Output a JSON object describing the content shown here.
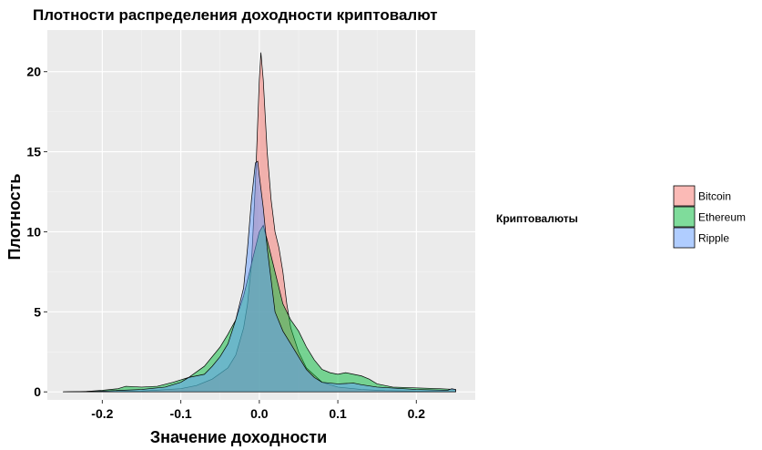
{
  "chart_data": {
    "type": "area",
    "title": "Плотности распределения доходности криптовалют",
    "xlabel": "Значение доходности",
    "ylabel": "Плотность",
    "xlim": [
      -0.27,
      0.275
    ],
    "ylim": [
      -0.5,
      22.6
    ],
    "x_ticks": [
      -0.2,
      -0.1,
      0.0,
      0.1,
      0.2
    ],
    "x_tick_labels": [
      "-0.2",
      "-0.1",
      "0.0",
      "0.1",
      "0.2"
    ],
    "y_ticks": [
      0,
      5,
      10,
      15,
      20
    ],
    "y_tick_labels": [
      "0",
      "5",
      "10",
      "15",
      "20"
    ],
    "grid": true,
    "legend": {
      "title": "Криптовалюты",
      "position": "right"
    },
    "series": [
      {
        "name": "Bitcoin",
        "color": "#F8766D",
        "points": [
          [
            -0.25,
            0
          ],
          [
            -0.2,
            0.02
          ],
          [
            -0.15,
            0.05
          ],
          [
            -0.1,
            0.2
          ],
          [
            -0.08,
            0.4
          ],
          [
            -0.06,
            0.8
          ],
          [
            -0.04,
            1.5
          ],
          [
            -0.03,
            2.3
          ],
          [
            -0.02,
            4
          ],
          [
            -0.015,
            5.5
          ],
          [
            -0.01,
            8
          ],
          [
            -0.005,
            13
          ],
          [
            0,
            19.5
          ],
          [
            0.002,
            21.2
          ],
          [
            0.005,
            19.5
          ],
          [
            0.01,
            15
          ],
          [
            0.015,
            12
          ],
          [
            0.02,
            10
          ],
          [
            0.025,
            9
          ],
          [
            0.03,
            7.5
          ],
          [
            0.035,
            5.5
          ],
          [
            0.04,
            4
          ],
          [
            0.05,
            2.5
          ],
          [
            0.06,
            1.5
          ],
          [
            0.08,
            0.6
          ],
          [
            0.1,
            0.3
          ],
          [
            0.13,
            0.15
          ],
          [
            0.16,
            0.08
          ],
          [
            0.2,
            0.04
          ],
          [
            0.25,
            0.02
          ]
        ]
      },
      {
        "name": "Ethereum",
        "color": "#00BA38",
        "points": [
          [
            -0.25,
            0
          ],
          [
            -0.22,
            0.03
          ],
          [
            -0.2,
            0.1
          ],
          [
            -0.18,
            0.2
          ],
          [
            -0.17,
            0.35
          ],
          [
            -0.15,
            0.3
          ],
          [
            -0.13,
            0.35
          ],
          [
            -0.11,
            0.6
          ],
          [
            -0.09,
            0.9
          ],
          [
            -0.07,
            1.6
          ],
          [
            -0.05,
            2.8
          ],
          [
            -0.04,
            3.6
          ],
          [
            -0.03,
            4.5
          ],
          [
            -0.02,
            6
          ],
          [
            -0.01,
            8
          ],
          [
            0,
            10
          ],
          [
            0.005,
            10.4
          ],
          [
            0.01,
            9.5
          ],
          [
            0.02,
            7.5
          ],
          [
            0.03,
            5.5
          ],
          [
            0.04,
            4.5
          ],
          [
            0.05,
            3.8
          ],
          [
            0.06,
            2.8
          ],
          [
            0.07,
            2
          ],
          [
            0.08,
            1.4
          ],
          [
            0.09,
            1.2
          ],
          [
            0.1,
            1.1
          ],
          [
            0.11,
            1.2
          ],
          [
            0.12,
            1.1
          ],
          [
            0.13,
            1
          ],
          [
            0.14,
            0.8
          ],
          [
            0.15,
            0.5
          ],
          [
            0.17,
            0.3
          ],
          [
            0.2,
            0.25
          ],
          [
            0.23,
            0.2
          ],
          [
            0.25,
            0.15
          ]
        ]
      },
      {
        "name": "Ripple",
        "color": "#619CFF",
        "points": [
          [
            -0.25,
            0
          ],
          [
            -0.2,
            0.05
          ],
          [
            -0.15,
            0.15
          ],
          [
            -0.12,
            0.3
          ],
          [
            -0.1,
            0.6
          ],
          [
            -0.09,
            0.9
          ],
          [
            -0.08,
            1
          ],
          [
            -0.07,
            1.1
          ],
          [
            -0.06,
            1.6
          ],
          [
            -0.05,
            2.2
          ],
          [
            -0.04,
            3
          ],
          [
            -0.03,
            4.5
          ],
          [
            -0.02,
            6.5
          ],
          [
            -0.015,
            9
          ],
          [
            -0.01,
            12
          ],
          [
            -0.005,
            14.3
          ],
          [
            -0.002,
            14.4
          ],
          [
            0,
            13.5
          ],
          [
            0.005,
            11.5
          ],
          [
            0.01,
            9
          ],
          [
            0.015,
            7
          ],
          [
            0.02,
            5
          ],
          [
            0.03,
            3.8
          ],
          [
            0.04,
            3
          ],
          [
            0.05,
            2.2
          ],
          [
            0.06,
            1.4
          ],
          [
            0.07,
            0.9
          ],
          [
            0.08,
            0.6
          ],
          [
            0.1,
            0.5
          ],
          [
            0.12,
            0.55
          ],
          [
            0.13,
            0.45
          ],
          [
            0.15,
            0.3
          ],
          [
            0.2,
            0.15
          ],
          [
            0.24,
            0.1
          ],
          [
            0.245,
            0.2
          ],
          [
            0.25,
            0.15
          ]
        ]
      }
    ]
  }
}
